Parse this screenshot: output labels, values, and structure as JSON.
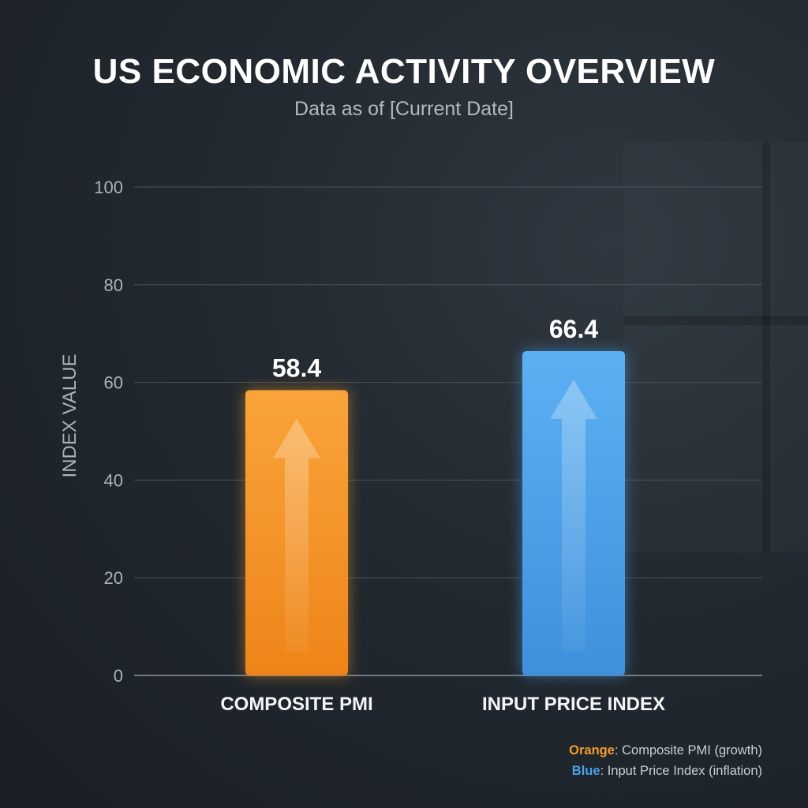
{
  "title": "US ECONOMIC ACTIVITY OVERVIEW",
  "subtitle": "Data as of [Current Date]",
  "chart_data": {
    "type": "bar",
    "categories": [
      "COMPOSITE PMI",
      "INPUT PRICE INDEX"
    ],
    "values": [
      58.4,
      66.4
    ],
    "value_labels": [
      "58.4",
      "66.4"
    ],
    "colors": [
      "#f39322",
      "#4ba0e6"
    ],
    "ylabel": "INDEX VALUE",
    "xlabel": "",
    "ylim": [
      0,
      100
    ],
    "yticks": [
      0,
      20,
      40,
      60,
      80,
      100
    ],
    "grid": true,
    "legend_position": "bottom-right"
  },
  "legend": [
    {
      "key": "Orange",
      "text": "Composite PMI (growth)",
      "color": "#f59a2e"
    },
    {
      "key": "Blue",
      "text": "Input Price Index (inflation)",
      "color": "#4aa3ea"
    }
  ]
}
